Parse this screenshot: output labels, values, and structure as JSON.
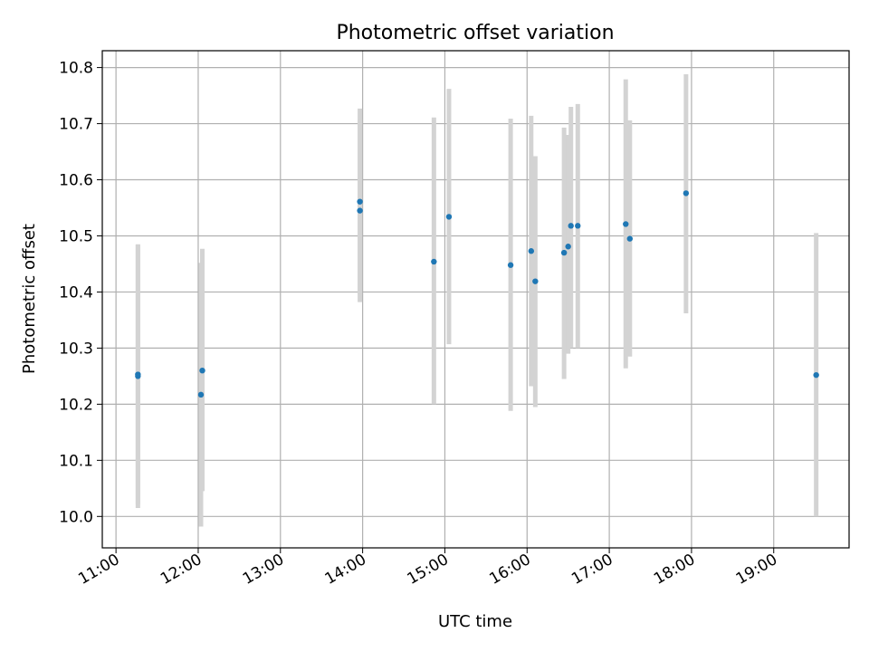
{
  "chart_data": {
    "type": "scatter",
    "title": "Photometric offset variation",
    "xlabel": "UTC time",
    "ylabel": "Photometric offset",
    "grid": true,
    "x_type": "time",
    "xlim": [
      "10:50",
      "19:55"
    ],
    "ylim": [
      9.944,
      10.83
    ],
    "x_ticks": [
      "11:00",
      "12:00",
      "13:00",
      "14:00",
      "15:00",
      "16:00",
      "17:00",
      "18:00",
      "19:00"
    ],
    "y_ticks": [
      10.0,
      10.1,
      10.2,
      10.3,
      10.4,
      10.5,
      10.6,
      10.7,
      10.8
    ],
    "colors": {
      "point": "#1f77b4",
      "errorbar": "#d3d3d3"
    },
    "points": [
      {
        "x": "11:16",
        "y": 10.25,
        "low": 10.015,
        "high": 10.485
      },
      {
        "x": "11:16",
        "y": 10.253,
        "low": 10.022,
        "high": 10.484
      },
      {
        "x": "12:02",
        "y": 10.217,
        "low": 9.982,
        "high": 10.452
      },
      {
        "x": "12:03",
        "y": 10.26,
        "low": 10.045,
        "high": 10.477
      },
      {
        "x": "13:58",
        "y": 10.561,
        "low": 10.395,
        "high": 10.727
      },
      {
        "x": "13:58",
        "y": 10.545,
        "low": 10.382,
        "high": 10.708
      },
      {
        "x": "14:52",
        "y": 10.454,
        "low": 10.2,
        "high": 10.711
      },
      {
        "x": "15:03",
        "y": 10.534,
        "low": 10.307,
        "high": 10.762
      },
      {
        "x": "15:48",
        "y": 10.448,
        "low": 10.188,
        "high": 10.709
      },
      {
        "x": "16:03",
        "y": 10.473,
        "low": 10.232,
        "high": 10.714
      },
      {
        "x": "16:06",
        "y": 10.419,
        "low": 10.195,
        "high": 10.642
      },
      {
        "x": "16:27",
        "y": 10.47,
        "low": 10.245,
        "high": 10.693
      },
      {
        "x": "16:30",
        "y": 10.481,
        "low": 10.29,
        "high": 10.68
      },
      {
        "x": "16:32",
        "y": 10.518,
        "low": 10.3,
        "high": 10.73
      },
      {
        "x": "16:37",
        "y": 10.518,
        "low": 10.3,
        "high": 10.735
      },
      {
        "x": "17:12",
        "y": 10.521,
        "low": 10.264,
        "high": 10.779
      },
      {
        "x": "17:15",
        "y": 10.495,
        "low": 10.285,
        "high": 10.706
      },
      {
        "x": "17:56",
        "y": 10.576,
        "low": 10.362,
        "high": 10.788
      },
      {
        "x": "19:31",
        "y": 10.252,
        "low": 10.0,
        "high": 10.505
      }
    ]
  }
}
